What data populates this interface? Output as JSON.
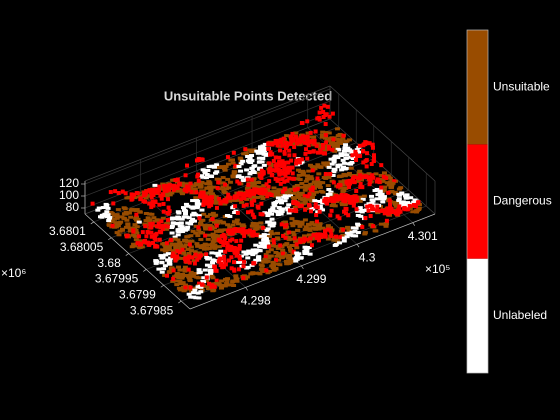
{
  "chart_data": {
    "type": "pointcloud3d",
    "title": "Unsuitable Points Detected",
    "xlim": [
      429700,
      430140
    ],
    "xticks": [
      {
        "value": 429800,
        "label": "4.298"
      },
      {
        "value": 429900,
        "label": "4.299"
      },
      {
        "value": 430000,
        "label": "4.3"
      },
      {
        "value": 430100,
        "label": "4.301"
      }
    ],
    "x_exponent": "×10⁵",
    "ylim": [
      3679825,
      3680125
    ],
    "yticks": [
      {
        "value": 3679850,
        "label": "3.67985"
      },
      {
        "value": 3679900,
        "label": "3.6799"
      },
      {
        "value": 3679950,
        "label": "3.67995"
      },
      {
        "value": 3680000,
        "label": "3.68"
      },
      {
        "value": 3680050,
        "label": "3.68005"
      },
      {
        "value": 3680100,
        "label": "3.6801"
      }
    ],
    "y_exponent": "×10⁶",
    "zlim": [
      70,
      125
    ],
    "zticks": [
      80,
      100,
      120
    ],
    "colorbar": [
      {
        "label": "Unlabeled",
        "color": "#ffffff"
      },
      {
        "label": "Dangerous",
        "color": "#ff0000"
      },
      {
        "label": "Unsuitable",
        "color": "#994c00"
      }
    ]
  }
}
